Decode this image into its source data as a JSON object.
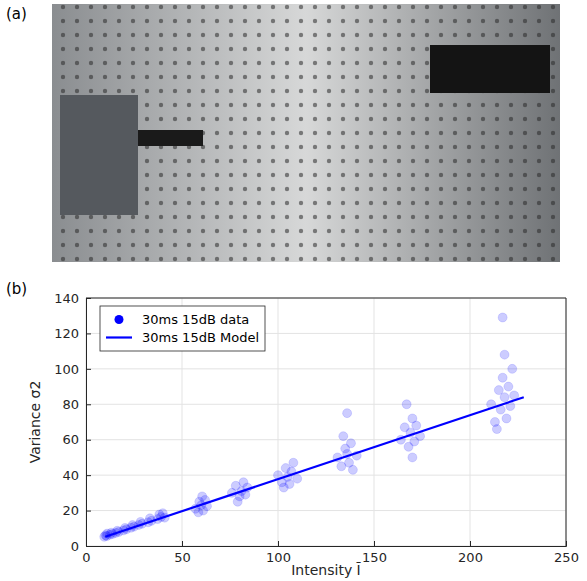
{
  "photo": {
    "label": "(a)"
  },
  "chart_data": {
    "type": "scatter",
    "panel_label": "(b)",
    "x_label": "Intensity Ī",
    "y_label": "Variance σ2",
    "xlim": [
      0,
      250
    ],
    "xticks": [
      0,
      50,
      100,
      150,
      200,
      250
    ],
    "ylim": [
      0,
      140
    ],
    "yticks": [
      0,
      20,
      40,
      60,
      80,
      100,
      120,
      140
    ],
    "grid": true,
    "legend": "upper left",
    "series": [
      {
        "name": "30ms 15dB data",
        "type": "scatter",
        "marker": "circle",
        "color": "#0000ff",
        "x": [
          9.5,
          10.2,
          10.8,
          11,
          12.5,
          13.2,
          13.8,
          15.5,
          16.3,
          17,
          19.5,
          20.3,
          21,
          23.4,
          24.2,
          25,
          27.5,
          28.4,
          29.2,
          32.4,
          33.3,
          34.1,
          37.3,
          38.2,
          39.1,
          40,
          41,
          57,
          59,
          60,
          61,
          62,
          63,
          60.5,
          58.5,
          76,
          78,
          80,
          81,
          82,
          83,
          79,
          84,
          100,
          102,
          104,
          105,
          106,
          107,
          108,
          103,
          110,
          131,
          133,
          135,
          136,
          137,
          138,
          139,
          141,
          134,
          136,
          164,
          166,
          168,
          169,
          170,
          171,
          172,
          174,
          167,
          170,
          211,
          213,
          215,
          216,
          217,
          218,
          219,
          220,
          221,
          222,
          218,
          217,
          214,
          223
        ],
        "values": [
          5.2,
          6.1,
          5.6,
          7,
          6.4,
          7.5,
          6.8,
          7.4,
          8.6,
          7.9,
          8.8,
          10.2,
          9.4,
          10.3,
          11.8,
          10.9,
          11.9,
          13.6,
          12.5,
          13.4,
          15.6,
          14.2,
          15.2,
          17.8,
          16.4,
          18.5,
          16,
          21,
          25,
          23,
          20,
          26,
          22.5,
          28,
          19,
          30,
          34,
          28,
          31,
          36,
          29,
          25,
          33,
          40,
          36,
          44,
          39,
          35,
          42,
          47,
          33,
          38,
          50,
          45,
          55,
          52,
          47,
          58,
          43,
          51,
          62,
          75,
          60,
          67,
          56,
          64,
          72,
          59,
          68,
          62,
          80,
          50,
          80,
          70,
          88,
          77,
          95,
          84,
          72,
          90,
          79,
          100,
          108,
          129,
          66,
          85
        ]
      },
      {
        "name": "30ms 15dB Model",
        "type": "line",
        "line_style": "solid",
        "color": "#0000ff",
        "x": [
          10,
          228
        ],
        "values": [
          5.2,
          84
        ]
      }
    ]
  }
}
